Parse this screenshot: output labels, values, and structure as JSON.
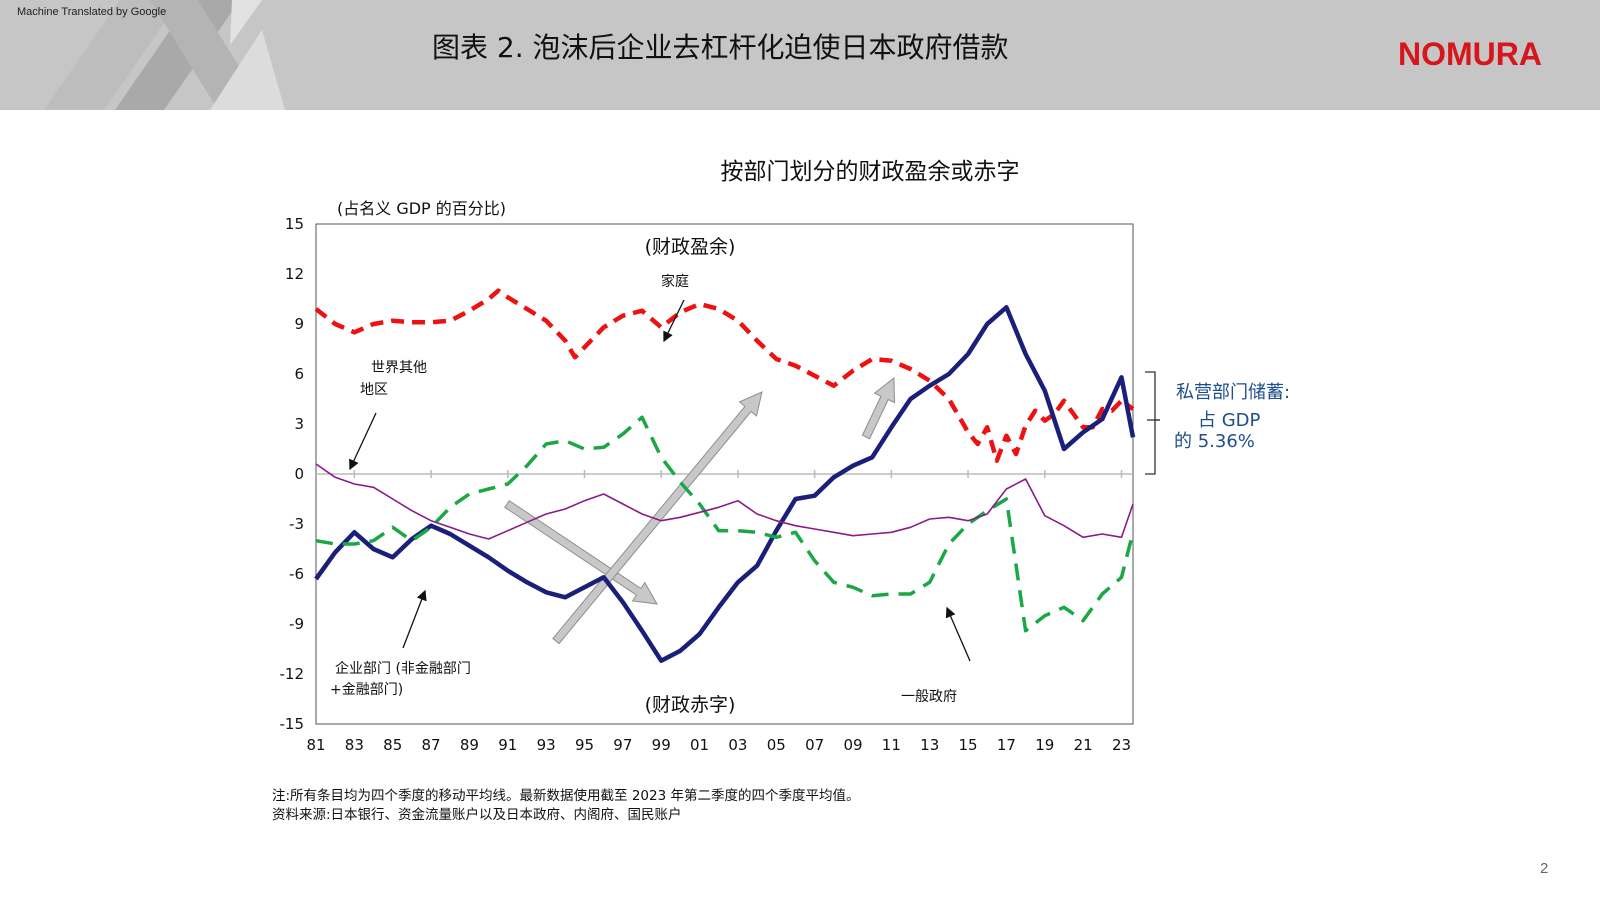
{
  "header": {
    "machine_translated": "Machine Translated by Google",
    "title": "图表 2. 泡沫后企业去杠杆化迫使日本政府借款",
    "logo": "NOMURA"
  },
  "chart_title": "按部门划分的财政盈余或赤字",
  "footnotes": {
    "note": "注:所有条目均为四个季度的移动平均线。最新数据使用截至 2023 年第二季度的四个季度平均值。",
    "source": "资料来源:日本银行、资金流量账户以及日本政府、内阁府、国民账户"
  },
  "page_number": "2",
  "savings_note": {
    "line1": "私营部门储蓄:",
    "line2": "占 GDP",
    "line3": "的 5.36%"
  },
  "colors": {
    "household": "#ee1111",
    "corporate": "#1a1f7a",
    "government": "#1aa844",
    "rest_of_world": "#8b1a8b",
    "arrow": "#a8a8a8",
    "brand": "#d8141c",
    "note_blue": "#1f4e8c"
  },
  "chart_data": {
    "type": "line",
    "title": "按部门划分的财政盈余或赤字",
    "ylabel": "(占名义 GDP 的百分比)",
    "ylim": [
      -15,
      15
    ],
    "yticks": [
      "15",
      "12",
      "9",
      "6",
      "3",
      "0",
      "-3",
      "-6",
      "-9",
      "-12",
      "-15"
    ],
    "xlim": [
      1981,
      2023.6
    ],
    "xticks": [
      "81",
      "83",
      "85",
      "87",
      "89",
      "91",
      "93",
      "95",
      "97",
      "99",
      "01",
      "03",
      "05",
      "07",
      "09",
      "11",
      "13",
      "15",
      "17",
      "19",
      "21",
      "23"
    ],
    "annotations": {
      "surplus": "(财政盈余)",
      "deficit": "(财政赤字)",
      "household": "家庭",
      "rest_of_world_1": "世界其他",
      "rest_of_world_2": "地区",
      "corporate_1": "企业部门 (非金融部门",
      "corporate_2": "+金融部门)",
      "government": "一般政府"
    },
    "series": [
      {
        "name": "家庭",
        "style": "dashed",
        "x": [
          1981,
          1982,
          1983,
          1984,
          1985,
          1986,
          1987,
          1988,
          1989,
          1990,
          1990.5,
          1991,
          1992,
          1993,
          1994,
          1994.5,
          1995,
          1996,
          1997,
          1998,
          1999,
          2000,
          2001,
          2002,
          2003,
          2004,
          2005,
          2006,
          2007,
          2008,
          2009,
          2010,
          2011,
          2012,
          2013,
          2014,
          2015,
          2015.5,
          2016,
          2016.5,
          2017,
          2017.5,
          2018,
          2018.5,
          2019,
          2019.5,
          2020,
          2020.5,
          2021,
          2021.5,
          2022,
          2022.5,
          2023,
          2023.6
        ],
        "values": [
          9.9,
          9.0,
          8.5,
          9.0,
          9.2,
          9.1,
          9.1,
          9.2,
          9.8,
          10.5,
          11.0,
          10.6,
          9.9,
          9.2,
          8.0,
          7.0,
          7.6,
          8.8,
          9.5,
          9.8,
          8.8,
          9.7,
          10.2,
          9.9,
          9.2,
          8.0,
          6.9,
          6.5,
          5.9,
          5.3,
          6.2,
          6.9,
          6.8,
          6.3,
          5.6,
          4.5,
          2.5,
          1.8,
          2.8,
          0.8,
          2.3,
          1.2,
          2.9,
          3.8,
          3.2,
          3.6,
          4.4,
          3.6,
          2.8,
          2.8,
          3.9,
          3.8,
          4.4,
          3.9
        ],
        "color_key": "household"
      },
      {
        "name": "企业部门 (非金融部门 +金融部门)",
        "style": "solid",
        "x": [
          1981,
          1982,
          1983,
          1984,
          1985,
          1986,
          1987,
          1988,
          1989,
          1990,
          1991,
          1992,
          1993,
          1994,
          1995,
          1996,
          1997,
          1998,
          1999,
          2000,
          2001,
          2002,
          2003,
          2004,
          2005,
          2006,
          2007,
          2008,
          2009,
          2010,
          2011,
          2012,
          2013,
          2014,
          2015,
          2016,
          2017,
          2018,
          2019,
          2020,
          2021,
          2022,
          2023,
          2023.6
        ],
        "values": [
          -6.3,
          -4.7,
          -3.5,
          -4.5,
          -5.0,
          -3.9,
          -3.1,
          -3.6,
          -4.3,
          -5.0,
          -5.8,
          -6.5,
          -7.1,
          -7.4,
          -6.8,
          -6.2,
          -7.7,
          -9.4,
          -11.2,
          -10.6,
          -9.6,
          -8.0,
          -6.5,
          -5.5,
          -3.4,
          -1.5,
          -1.3,
          -0.2,
          0.5,
          1.0,
          2.8,
          4.5,
          5.3,
          6.0,
          7.2,
          9.0,
          10.0,
          7.2,
          5.0,
          1.5,
          2.5,
          3.3,
          5.8,
          2.2
        ],
        "color_key": "corporate"
      },
      {
        "name": "一般政府",
        "style": "dashed",
        "x": [
          1981,
          1982,
          1983,
          1984,
          1985,
          1986,
          1987,
          1988,
          1989,
          1990,
          1991,
          1992,
          1993,
          1994,
          1995,
          1996,
          1997,
          1998,
          1999,
          2000,
          2001,
          2002,
          2003,
          2004,
          2005,
          2006,
          2007,
          2008,
          2009,
          2010,
          2011,
          2012,
          2013,
          2014,
          2015,
          2016,
          2017,
          2018,
          2019,
          2020,
          2021,
          2022,
          2023,
          2023.6
        ],
        "values": [
          -4.0,
          -4.2,
          -4.2,
          -4.0,
          -3.2,
          -4.0,
          -3.2,
          -2.0,
          -1.2,
          -0.9,
          -0.6,
          0.5,
          1.8,
          2.0,
          1.5,
          1.6,
          2.4,
          3.4,
          1.0,
          -0.5,
          -1.8,
          -3.4,
          -3.4,
          -3.5,
          -3.8,
          -3.5,
          -5.2,
          -6.5,
          -6.8,
          -7.3,
          -7.2,
          -7.2,
          -6.5,
          -4.2,
          -3.0,
          -2.2,
          -1.5,
          -9.4,
          -8.5,
          -8.0,
          -8.8,
          -7.2,
          -6.2,
          -3.5
        ],
        "color_key": "government"
      },
      {
        "name": "世界其他地区",
        "style": "solid",
        "x": [
          1981,
          1982,
          1983,
          1984,
          1985,
          1986,
          1987,
          1988,
          1989,
          1990,
          1991,
          1992,
          1993,
          1994,
          1995,
          1996,
          1997,
          1998,
          1999,
          2000,
          2001,
          2002,
          2003,
          2004,
          2005,
          2006,
          2007,
          2008,
          2009,
          2010,
          2011,
          2012,
          2013,
          2014,
          2015,
          2016,
          2017,
          2018,
          2019,
          2020,
          2021,
          2022,
          2023,
          2023.6
        ],
        "values": [
          0.6,
          -0.2,
          -0.6,
          -0.8,
          -1.5,
          -2.2,
          -2.8,
          -3.2,
          -3.6,
          -3.9,
          -3.4,
          -2.9,
          -2.4,
          -2.1,
          -1.6,
          -1.2,
          -1.8,
          -2.4,
          -2.8,
          -2.6,
          -2.3,
          -2.0,
          -1.6,
          -2.4,
          -2.8,
          -3.1,
          -3.3,
          -3.5,
          -3.7,
          -3.6,
          -3.5,
          -3.2,
          -2.7,
          -2.6,
          -2.8,
          -2.4,
          -0.9,
          -0.3,
          -2.5,
          -3.1,
          -3.8,
          -3.6,
          -3.8,
          -1.8
        ],
        "color_key": "rest_of_world"
      }
    ]
  }
}
